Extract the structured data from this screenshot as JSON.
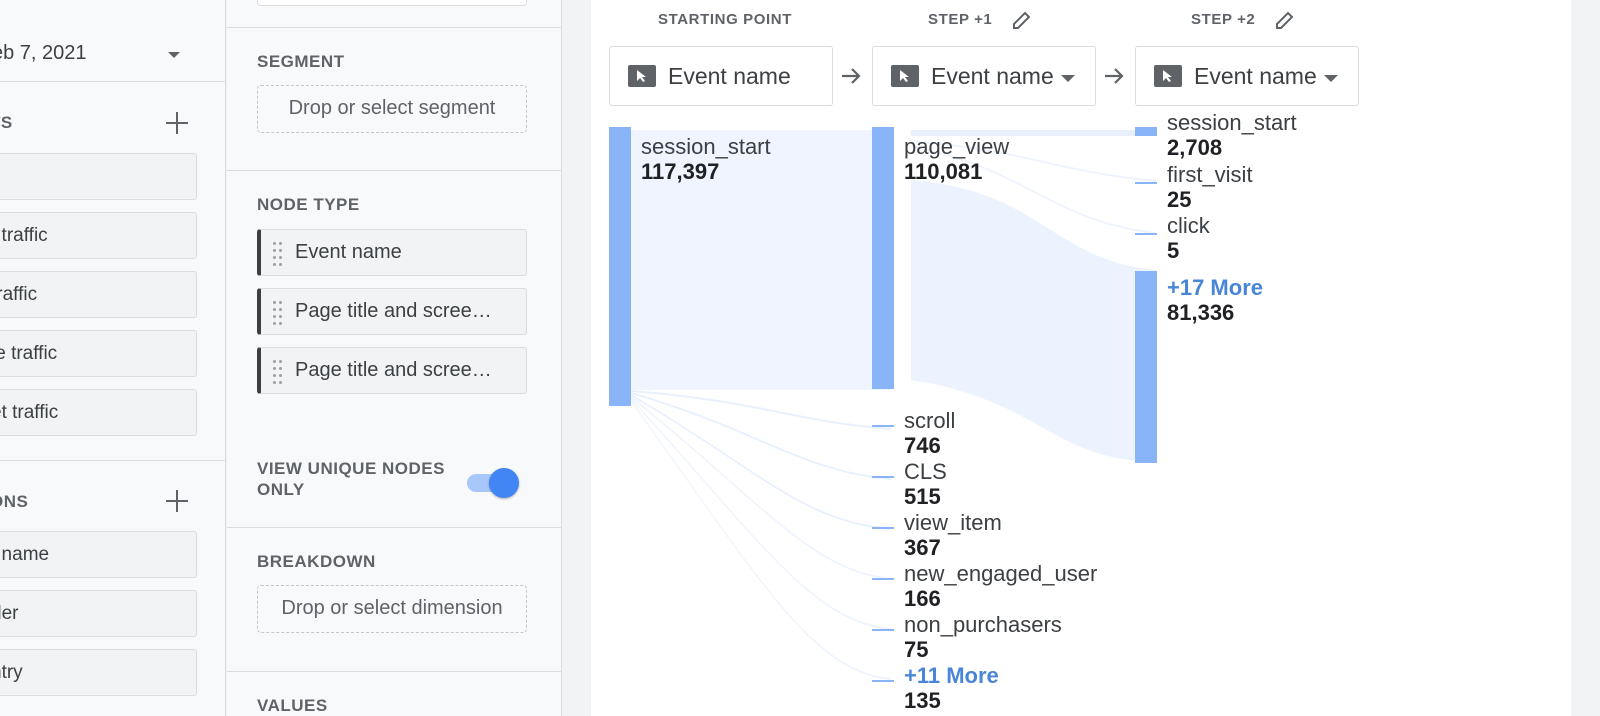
{
  "variables": {
    "date_range": "eb 7, 2021",
    "segments_header": "TS",
    "segment_chips": [
      "",
      "t traffic",
      "traffic",
      "le traffic",
      "et traffic"
    ],
    "dimensions_header": "ONS",
    "dimension_chips": [
      "t name",
      "der",
      "ntry"
    ]
  },
  "tab_settings": {
    "segment_label": "SEGMENT",
    "segment_drop": "Drop or select segment",
    "node_type_label": "NODE TYPE",
    "node_types": [
      "Event name",
      "Page title and scree…",
      "Page title and scree…"
    ],
    "unique_nodes_label_line1": "VIEW UNIQUE NODES",
    "unique_nodes_label_line2": "ONLY",
    "unique_nodes_on": true,
    "breakdown_label": "BREAKDOWN",
    "breakdown_drop": "Drop or select dimension",
    "values_label": "VALUES"
  },
  "canvas": {
    "steps": [
      {
        "label": "STARTING POINT",
        "value": "Event name"
      },
      {
        "label": "STEP +1",
        "value": "Event name"
      },
      {
        "label": "STEP +2",
        "value": "Event name"
      }
    ],
    "step0_nodes": [
      {
        "name": "session_start",
        "value": "117,397"
      }
    ],
    "step1_nodes": [
      {
        "name": "page_view",
        "value": "110,081"
      },
      {
        "name": "scroll",
        "value": "746"
      },
      {
        "name": "CLS",
        "value": "515"
      },
      {
        "name": "view_item",
        "value": "367"
      },
      {
        "name": "new_engaged_user",
        "value": "166"
      },
      {
        "name": "non_purchasers",
        "value": "75"
      },
      {
        "name": "+11 More",
        "value": "135"
      }
    ],
    "step2_nodes": [
      {
        "name": "session_start",
        "value": "2,708"
      },
      {
        "name": "first_visit",
        "value": "25"
      },
      {
        "name": "click",
        "value": "5"
      },
      {
        "name": "+17 More",
        "value": "81,336"
      }
    ],
    "colors": {
      "node_bar": "#8ab4f8",
      "flow": "#e8f0fe",
      "more_link": "#4a86d8"
    }
  }
}
